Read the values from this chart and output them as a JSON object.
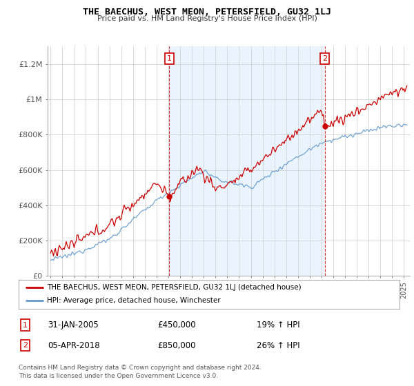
{
  "title": "THE BAECHUS, WEST MEON, PETERSFIELD, GU32 1LJ",
  "subtitle": "Price paid vs. HM Land Registry's House Price Index (HPI)",
  "ylabel_ticks": [
    "£0",
    "£200K",
    "£400K",
    "£600K",
    "£800K",
    "£1M",
    "£1.2M"
  ],
  "ytick_vals": [
    0,
    200000,
    400000,
    600000,
    800000,
    1000000,
    1200000
  ],
  "ylim": [
    0,
    1300000
  ],
  "xlim_start": 1994.75,
  "xlim_end": 2025.5,
  "marker1_x": 2005.08,
  "marker1_y": 450000,
  "marker1_label": "1",
  "marker2_x": 2018.27,
  "marker2_y": 850000,
  "marker2_label": "2",
  "legend_line1": "THE BAECHUS, WEST MEON, PETERSFIELD, GU32 1LJ (detached house)",
  "legend_line2": "HPI: Average price, detached house, Winchester",
  "table_row1_num": "1",
  "table_row1_date": "31-JAN-2005",
  "table_row1_price": "£450,000",
  "table_row1_hpi": "19% ↑ HPI",
  "table_row2_num": "2",
  "table_row2_date": "05-APR-2018",
  "table_row2_price": "£850,000",
  "table_row2_hpi": "26% ↑ HPI",
  "footer": "Contains HM Land Registry data © Crown copyright and database right 2024.\nThis data is licensed under the Open Government Licence v3.0.",
  "line1_color": "#cc0000",
  "line2_color": "#6699cc",
  "shade_color": "#ddeeff",
  "background_color": "#ffffff",
  "grid_color": "#cccccc"
}
